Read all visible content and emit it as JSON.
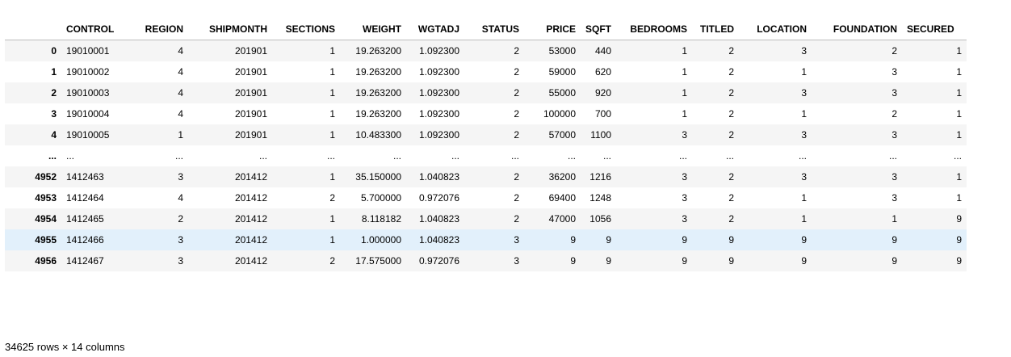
{
  "table": {
    "index_header": "",
    "columns": [
      "CONTROL",
      "REGION",
      "SHIPMONTH",
      "SECTIONS",
      "WEIGHT",
      "WGTADJ",
      "STATUS",
      "PRICE",
      "SQFT",
      "BEDROOMS",
      "TITLED",
      "LOCATION",
      "FOUNDATION",
      "SECURED"
    ],
    "rows": [
      {
        "index": "0",
        "cells": [
          "19010001",
          "4",
          "201901",
          "1",
          "19.263200",
          "1.092300",
          "2",
          "53000",
          "440",
          "1",
          "2",
          "3",
          "2",
          "1"
        ]
      },
      {
        "index": "1",
        "cells": [
          "19010002",
          "4",
          "201901",
          "1",
          "19.263200",
          "1.092300",
          "2",
          "59000",
          "620",
          "1",
          "2",
          "1",
          "3",
          "1"
        ]
      },
      {
        "index": "2",
        "cells": [
          "19010003",
          "4",
          "201901",
          "1",
          "19.263200",
          "1.092300",
          "2",
          "55000",
          "920",
          "1",
          "2",
          "3",
          "3",
          "1"
        ]
      },
      {
        "index": "3",
        "cells": [
          "19010004",
          "4",
          "201901",
          "1",
          "19.263200",
          "1.092300",
          "2",
          "100000",
          "700",
          "1",
          "2",
          "1",
          "2",
          "1"
        ]
      },
      {
        "index": "4",
        "cells": [
          "19010005",
          "1",
          "201901",
          "1",
          "10.483300",
          "1.092300",
          "2",
          "57000",
          "1100",
          "3",
          "2",
          "3",
          "3",
          "1"
        ]
      },
      {
        "index": "...",
        "cells": [
          "...",
          "...",
          "...",
          "...",
          "...",
          "...",
          "...",
          "...",
          "...",
          "...",
          "...",
          "...",
          "...",
          "..."
        ]
      },
      {
        "index": "4952",
        "cells": [
          "1412463",
          "3",
          "201412",
          "1",
          "35.150000",
          "1.040823",
          "2",
          "36200",
          "1216",
          "3",
          "2",
          "3",
          "3",
          "1"
        ]
      },
      {
        "index": "4953",
        "cells": [
          "1412464",
          "4",
          "201412",
          "2",
          "5.700000",
          "0.972076",
          "2",
          "69400",
          "1248",
          "3",
          "2",
          "1",
          "3",
          "1"
        ]
      },
      {
        "index": "4954",
        "cells": [
          "1412465",
          "2",
          "201412",
          "1",
          "8.118182",
          "1.040823",
          "2",
          "47000",
          "1056",
          "3",
          "2",
          "1",
          "1",
          "9"
        ]
      },
      {
        "index": "4955",
        "cells": [
          "1412466",
          "3",
          "201412",
          "1",
          "1.000000",
          "1.040823",
          "3",
          "9",
          "9",
          "9",
          "9",
          "9",
          "9",
          "9"
        ]
      },
      {
        "index": "4956",
        "cells": [
          "1412467",
          "3",
          "201412",
          "2",
          "17.575000",
          "0.972076",
          "3",
          "9",
          "9",
          "9",
          "9",
          "9",
          "9",
          "9"
        ]
      }
    ],
    "hovered_row": "4955"
  },
  "footer": {
    "shape_text": "34625 rows × 14 columns"
  }
}
